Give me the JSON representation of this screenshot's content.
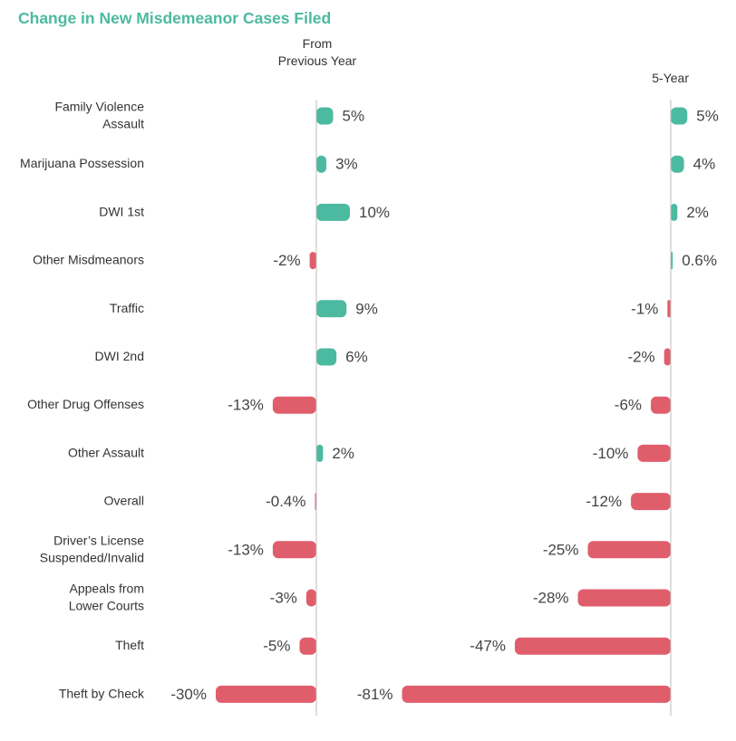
{
  "chart_data": {
    "type": "bar",
    "orientation": "horizontal",
    "title": "Change in New Misdemeanor Cases Filed",
    "categories": [
      [
        "Family Violence",
        "Assault"
      ],
      [
        "Marijuana Possession"
      ],
      [
        "DWI 1st"
      ],
      [
        "Other Misdmeanors"
      ],
      [
        "Traffic"
      ],
      [
        "DWI 2nd"
      ],
      [
        "Other Drug Offenses"
      ],
      [
        "Other Assault"
      ],
      [
        "Overall"
      ],
      [
        "Driver’s License",
        "Suspended/Invalid"
      ],
      [
        "Appeals from",
        "Lower Courts"
      ],
      [
        "Theft"
      ],
      [
        "Theft by Check"
      ]
    ],
    "series": [
      {
        "name": [
          "From",
          "Previous Year"
        ],
        "values": [
          5,
          3,
          10,
          -2,
          9,
          6,
          -13,
          2,
          -0.4,
          -13,
          -3,
          -5,
          -30
        ],
        "labels": [
          "5%",
          "3%",
          "10%",
          "-2%",
          "9%",
          "6%",
          "-13%",
          "2%",
          "-0.4%",
          "-13%",
          "-3%",
          "-5%",
          "-30%"
        ]
      },
      {
        "name": [
          "5-Year"
        ],
        "values": [
          5,
          4,
          2,
          0.6,
          -1,
          -2,
          -6,
          -10,
          -12,
          -25,
          -28,
          -47,
          -81
        ],
        "labels": [
          "5%",
          "4%",
          "2%",
          "0.6%",
          "-1%",
          "-2%",
          "-6%",
          "-10%",
          "-12%",
          "-25%",
          "-28%",
          "-47%",
          "-81%"
        ]
      }
    ],
    "colors": {
      "positive": "#4cbaa0",
      "negative": "#e05e6b",
      "title": "#4cbaa0"
    }
  }
}
